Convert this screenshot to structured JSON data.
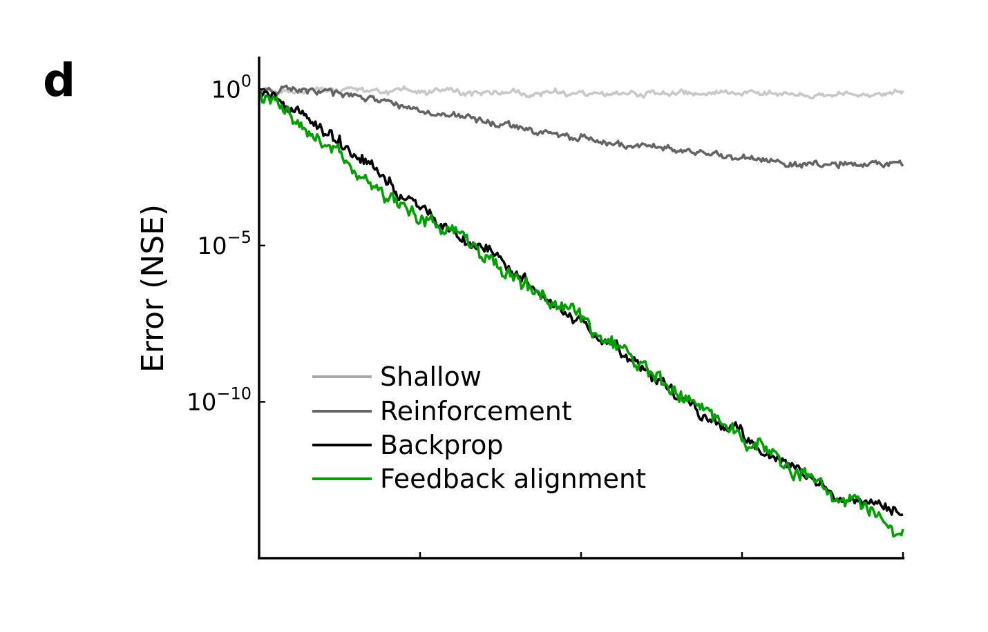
{
  "panel_label": "d",
  "chart_data": {
    "type": "line",
    "ylabel": "Error (NSE)",
    "xlabel": "",
    "yscale": "log",
    "ylim": [
      1e-15,
      10
    ],
    "xlim": [
      0,
      100
    ],
    "x_ticks": [
      0,
      25,
      50,
      75,
      100
    ],
    "x_tick_labels_shown": false,
    "y_ticks": [
      {
        "value": 1,
        "base": "10",
        "exp": "0"
      },
      {
        "value": 1e-05,
        "base": "10",
        "exp": "−5"
      },
      {
        "value": 1e-10,
        "base": "10",
        "exp": "−10"
      }
    ],
    "grid": false,
    "legend_position": "lower-left",
    "series": [
      {
        "name": "Shallow",
        "color": "#c8c8c8",
        "x": [
          0,
          10,
          25,
          50,
          75,
          100
        ],
        "y": [
          1.0,
          0.95,
          0.8,
          0.7,
          0.75,
          0.7
        ]
      },
      {
        "name": "Reinforcement",
        "color": "#646464",
        "x": [
          0,
          10,
          20,
          30,
          40,
          50,
          60,
          70,
          80,
          90,
          100
        ],
        "y": [
          1.0,
          0.8,
          0.35,
          0.15,
          0.06,
          0.03,
          0.015,
          0.008,
          0.005,
          0.004,
          0.004
        ]
      },
      {
        "name": "Backprop",
        "color": "#000000",
        "x": [
          0,
          10,
          20,
          30,
          40,
          50,
          60,
          70,
          80,
          90,
          100
        ],
        "y": [
          1.0,
          0.05,
          0.001,
          3e-05,
          1e-06,
          3e-08,
          1e-09,
          3e-11,
          2e-12,
          1e-13,
          3e-14
        ]
      },
      {
        "name": "Feedback alignment",
        "color": "#00a000",
        "x": [
          0,
          10,
          20,
          30,
          40,
          50,
          60,
          70,
          80,
          90,
          100
        ],
        "y": [
          1.0,
          0.02,
          0.0003,
          3e-05,
          1e-06,
          3e-08,
          1e-09,
          3e-11,
          2e-12,
          1e-13,
          1e-14
        ]
      }
    ]
  }
}
